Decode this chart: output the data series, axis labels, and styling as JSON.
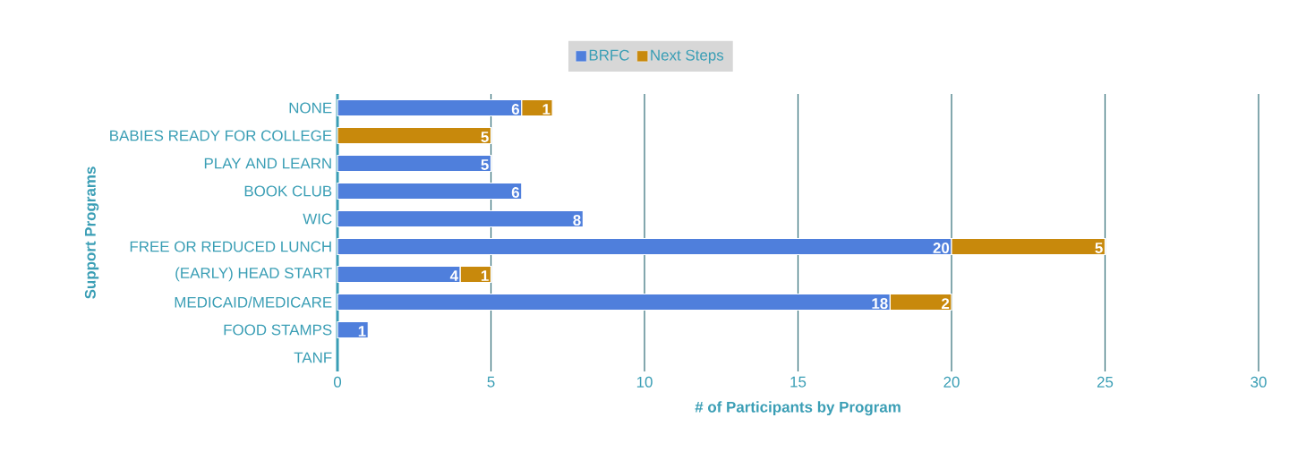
{
  "chart_data": {
    "type": "bar",
    "orientation": "horizontal",
    "stacked": true,
    "categories": [
      "NONE",
      "BABIES READY FOR COLLEGE",
      "PLAY AND LEARN",
      "BOOK CLUB",
      "WIC",
      "FREE OR REDUCED LUNCH",
      "(EARLY) HEAD START",
      "MEDICAID/MEDICARE",
      "FOOD STAMPS",
      "TANF"
    ],
    "series": [
      {
        "name": "BRFC",
        "color": "#4f7fdc",
        "values": [
          6,
          null,
          5,
          6,
          8,
          20,
          4,
          18,
          1,
          null
        ]
      },
      {
        "name": "Next Steps",
        "color": "#c8890c",
        "values": [
          1,
          5,
          null,
          null,
          null,
          5,
          1,
          2,
          null,
          null
        ]
      }
    ],
    "xlim": [
      0,
      30
    ],
    "xticks": [
      0,
      5,
      10,
      15,
      20,
      25,
      30
    ],
    "xlabel": "# of Participants by Program",
    "ylabel": "Support Programs",
    "grid": "x",
    "legend": "top",
    "data_labels": true
  }
}
